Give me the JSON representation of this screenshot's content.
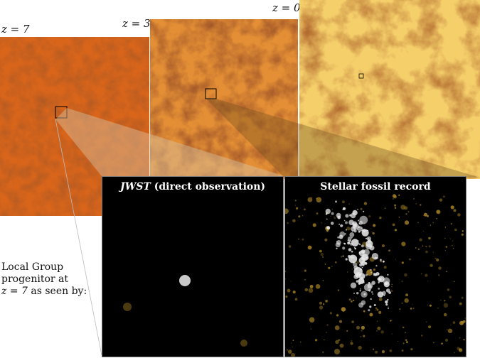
{
  "redshift_labels": {
    "z7": "z = 7",
    "z3": "z = 3",
    "z0": "z = 0"
  },
  "panels": {
    "jwst_italic": "JWST",
    "jwst_rest": " (direct observation)",
    "fossil": "Stellar fossil record"
  },
  "caption": {
    "line1": "Local Group",
    "line2": "progenitor at",
    "line3_z": "z = 7",
    "line3_rest": " as seen by:"
  },
  "colors": {
    "web_z7": "#d9651a",
    "web_z3": "#e08a2e",
    "web_z0": "#f3c45a",
    "filament": "#5a1a08",
    "zoom_wedge": "#c9a27a",
    "star_gold": "#b8912a",
    "star_white": "#e8e8e8"
  }
}
